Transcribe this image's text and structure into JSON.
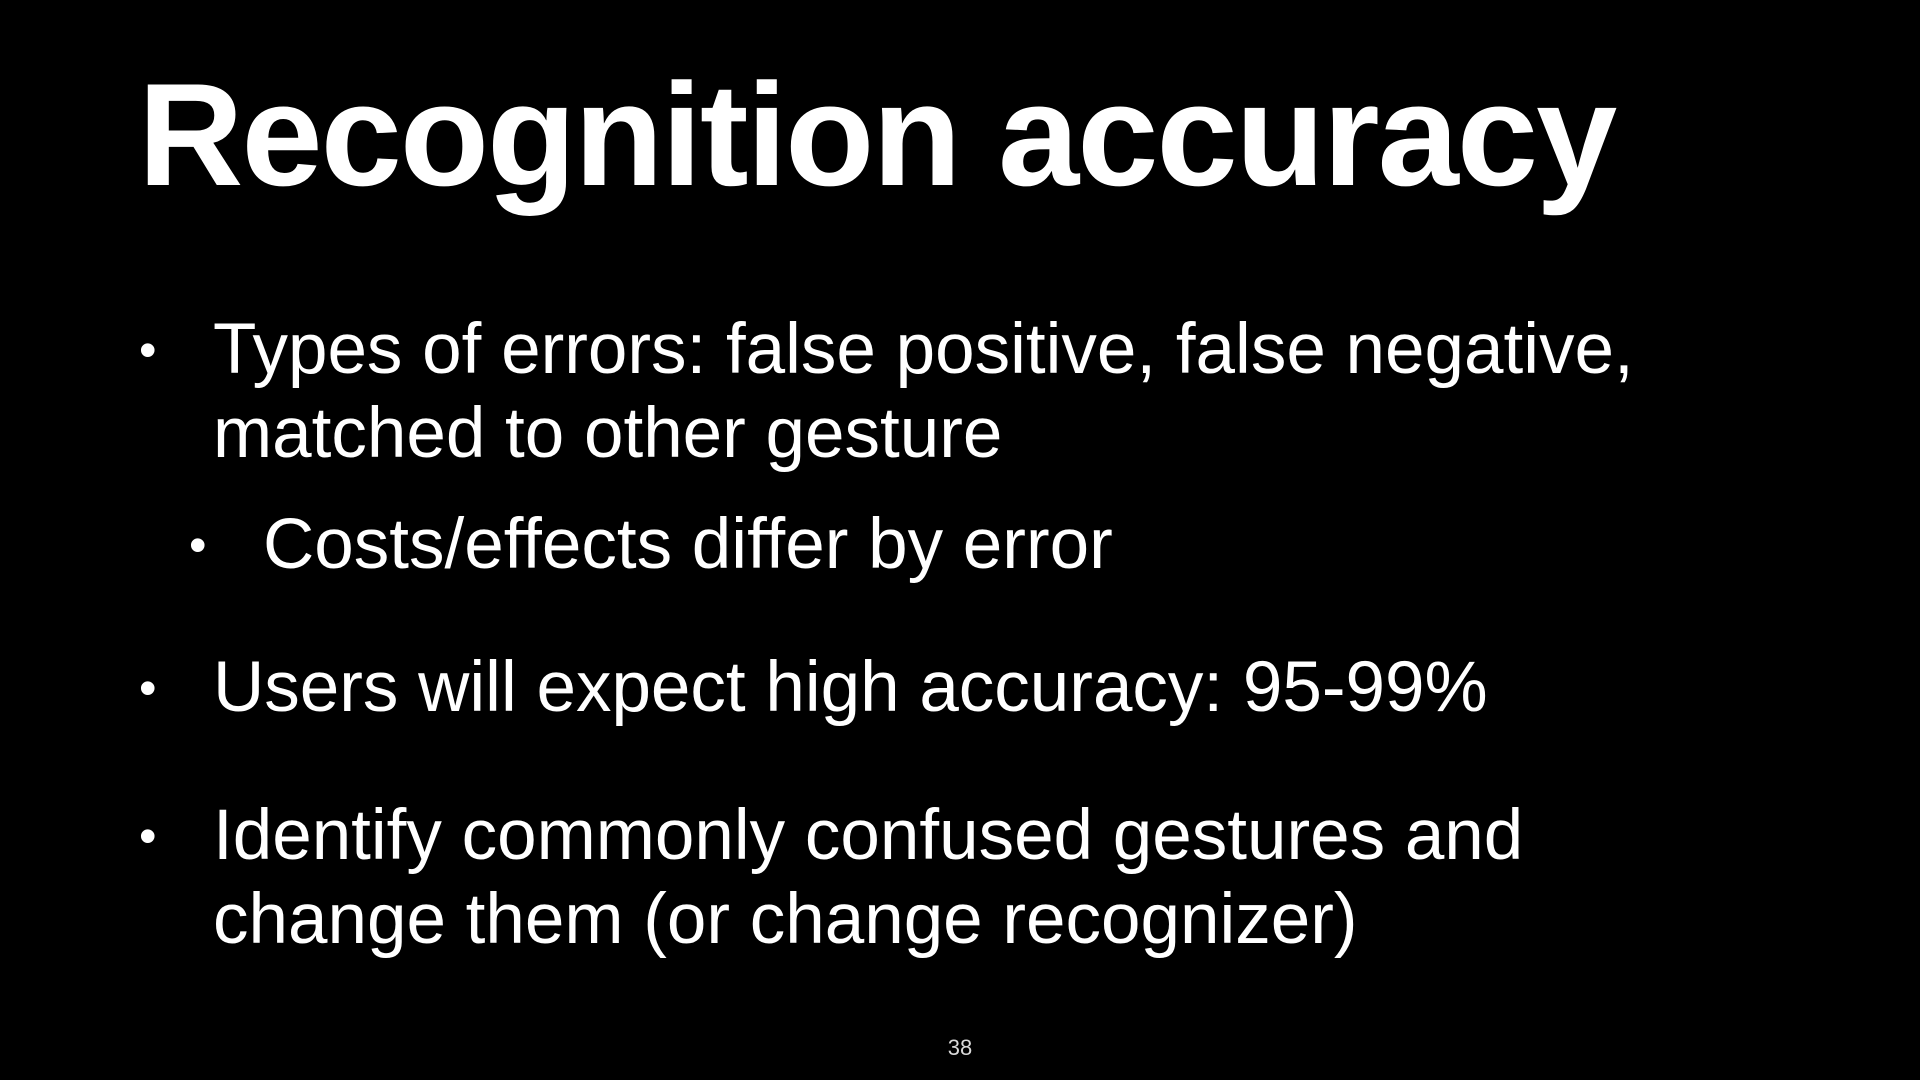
{
  "slide": {
    "title": "Recognition accuracy",
    "bullet_glyph": "•",
    "bullets": [
      {
        "text_line1": "Types of errors: false positive, false negative,",
        "text_line2": "matched to other gesture"
      },
      {
        "text_line1": "Costs/effects differ by error"
      },
      {
        "text_line1": "Users will expect high accuracy: 95-99%"
      },
      {
        "text_line1": "Identify commonly confused gestures and",
        "text_line2": "change them (or change recognizer)"
      }
    ],
    "page_number": "38"
  },
  "colors": {
    "background": "#000000",
    "text": "#ffffff",
    "page_number": "#d9d9d9"
  }
}
